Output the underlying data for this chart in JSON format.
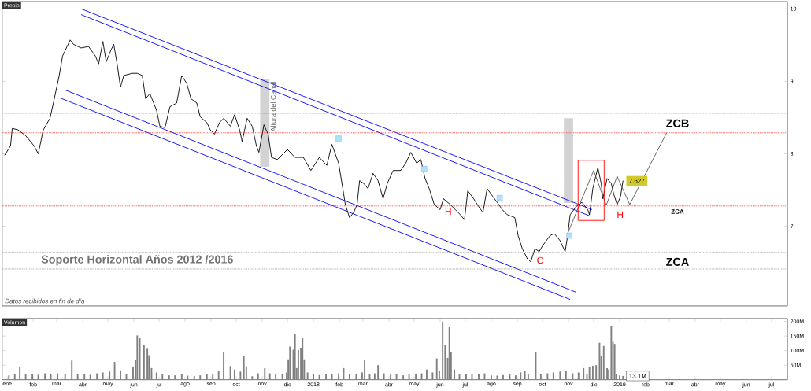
{
  "chart_data": [
    {
      "type": "line",
      "title": "Precio",
      "xlim": [
        "2016-12-26",
        "2019-07-20"
      ],
      "ylim": [
        5.9,
        10.1
      ],
      "yticks": [
        7,
        8,
        9,
        10
      ],
      "tick_labels": "y",
      "grid": false,
      "marker": "none",
      "series": [
        {
          "type": "bar",
          "color": "#d3d3d3",
          "x": [
            "2017-11-04",
            "2018-11-01"
          ],
          "base": [
            7.82,
            7.32
          ],
          "values": [
            1.21,
            1.17
          ]
        },
        {
          "type": "line",
          "color": "#000000",
          "x": [
            "2016-12-29",
            "2017-01-05",
            "2017-01-07",
            "2017-01-14",
            "2017-01-23",
            "2017-02-02",
            "2017-02-07",
            "2017-02-13",
            "2017-02-21",
            "2017-02-25",
            "2017-03-04",
            "2017-03-08",
            "2017-03-17",
            "2017-03-21",
            "2017-03-30",
            "2017-04-08",
            "2017-04-16",
            "2017-04-20",
            "2017-04-25",
            "2017-04-29",
            "2017-05-05",
            "2017-05-08",
            "2017-05-12",
            "2017-05-16",
            "2017-05-20",
            "2017-05-30",
            "2017-06-05",
            "2017-06-11",
            "2017-06-15",
            "2017-06-20",
            "2017-06-28",
            "2017-07-02",
            "2017-07-08",
            "2017-07-14",
            "2017-07-22",
            "2017-07-28",
            "2017-08-03",
            "2017-08-08",
            "2017-08-15",
            "2017-08-19",
            "2017-08-27",
            "2017-08-31",
            "2017-09-05",
            "2017-09-11",
            "2017-09-16",
            "2017-09-24",
            "2017-09-29",
            "2017-10-05",
            "2017-10-08",
            "2017-10-14",
            "2017-10-20",
            "2017-10-25",
            "2017-10-28",
            "2017-11-03",
            "2017-11-08",
            "2017-11-12",
            "2017-11-19",
            "2017-12-01",
            "2017-12-10",
            "2017-12-20",
            "2017-12-29",
            "2018-01-08",
            "2018-01-17",
            "2018-01-23",
            "2018-01-31",
            "2018-02-05",
            "2018-02-08",
            "2018-02-13",
            "2018-02-18",
            "2018-02-22",
            "2018-02-25",
            "2018-03-02",
            "2018-03-07",
            "2018-03-13",
            "2018-03-19",
            "2018-03-25",
            "2018-03-30",
            "2018-04-06",
            "2018-04-15",
            "2018-04-21",
            "2018-04-27",
            "2018-05-04",
            "2018-05-09",
            "2018-05-14",
            "2018-05-19",
            "2018-05-25",
            "2018-06-01",
            "2018-06-05",
            "2018-06-13",
            "2018-06-19",
            "2018-06-25",
            "2018-06-30",
            "2018-07-04",
            "2018-07-11",
            "2018-07-17",
            "2018-07-22",
            "2018-07-27",
            "2018-08-01",
            "2018-08-08",
            "2018-08-14",
            "2018-08-20",
            "2018-08-29",
            "2018-09-02",
            "2018-09-07",
            "2018-09-13",
            "2018-09-17",
            "2018-09-22",
            "2018-09-27",
            "2018-10-01",
            "2018-10-10",
            "2018-10-15",
            "2018-10-22",
            "2018-10-28",
            "2018-10-31",
            "2018-11-03",
            "2018-11-10",
            "2018-11-17",
            "2018-11-24",
            "2018-11-26",
            "2018-11-30",
            "2018-12-06",
            "2018-12-10",
            "2018-12-12",
            "2018-12-17",
            "2018-12-22",
            "2018-12-25",
            "2018-12-29",
            "2019-01-02",
            "2019-01-05"
          ],
          "values": [
            7.98,
            8.11,
            8.35,
            8.33,
            8.25,
            8.11,
            8.0,
            8.33,
            8.49,
            8.7,
            9.08,
            9.35,
            9.57,
            9.51,
            9.46,
            9.48,
            9.35,
            9.24,
            9.55,
            9.27,
            9.44,
            9.51,
            9.24,
            8.92,
            9.08,
            9.11,
            9.11,
            9.08,
            8.76,
            8.83,
            8.6,
            8.38,
            8.36,
            8.65,
            8.7,
            9.08,
            8.97,
            8.76,
            8.7,
            8.51,
            8.43,
            8.33,
            8.27,
            8.43,
            8.49,
            8.38,
            8.54,
            8.33,
            8.17,
            8.49,
            8.38,
            8.11,
            8.02,
            8.4,
            8.27,
            7.95,
            7.92,
            8.06,
            7.95,
            7.95,
            7.77,
            7.95,
            7.84,
            8.13,
            7.87,
            7.52,
            7.3,
            7.12,
            7.19,
            7.3,
            7.63,
            7.59,
            7.52,
            7.73,
            7.63,
            7.38,
            7.59,
            7.77,
            7.77,
            7.87,
            8.02,
            7.87,
            7.92,
            7.66,
            7.52,
            7.3,
            7.23,
            7.38,
            7.3,
            7.23,
            7.16,
            7.09,
            7.49,
            7.38,
            7.27,
            7.19,
            7.52,
            7.44,
            7.33,
            7.23,
            7.16,
            7.12,
            6.87,
            6.69,
            6.55,
            6.51,
            6.69,
            6.65,
            6.73,
            6.87,
            6.9,
            6.8,
            6.65,
            6.87,
            7.16,
            7.27,
            7.33,
            7.23,
            7.16,
            7.52,
            7.81,
            7.59,
            7.38,
            7.66,
            7.59,
            7.44,
            7.3,
            7.41,
            7.63
          ]
        },
        {
          "type": "line",
          "color": "#0000ff",
          "x": [
            "2017-03-30",
            "2018-11-29"
          ],
          "values": [
            10.0,
            7.23
          ]
        },
        {
          "type": "line",
          "color": "#0000ff",
          "x": [
            "2017-03-30",
            "2018-11-27"
          ],
          "values": [
            9.92,
            7.14
          ]
        },
        {
          "type": "line",
          "color": "#0000ff",
          "x": [
            "2017-03-11",
            "2018-11-10"
          ],
          "values": [
            8.88,
            6.09
          ]
        },
        {
          "type": "line",
          "color": "#0000ff",
          "x": [
            "2017-03-05",
            "2018-11-03"
          ],
          "values": [
            8.77,
            5.99
          ]
        },
        {
          "type": "line",
          "color": "#555555",
          "x": [
            "2018-10-31",
            "2018-12-01",
            "2018-12-16",
            "2018-12-29",
            "2019-01-13",
            "2019-02-26"
          ],
          "values": [
            6.9,
            7.77,
            7.29,
            7.69,
            7.3,
            8.29
          ]
        },
        {
          "type": "bar",
          "color": "#ff0000",
          "line_style": "solid",
          "x": [
            "2018-11-28"
          ],
          "base": [
            7.08
          ],
          "values": [
            0.83
          ]
        },
        {
          "type": "scatter",
          "color": "#aee3f5",
          "marker": "square",
          "x": [
            "2018-01-31",
            "2018-05-13",
            "2018-08-11",
            "2018-11-02"
          ],
          "values": [
            8.21,
            7.79,
            7.39,
            6.87
          ]
        }
      ],
      "ref_lines": [
        {
          "axis": "y",
          "value": 8.56,
          "color": "#ff0000",
          "line_style": "dotted"
        },
        {
          "axis": "y",
          "value": 8.29,
          "color": "#ff0000",
          "line_style": "dotted"
        },
        {
          "axis": "y",
          "value": 7.28,
          "color": "#ff0000",
          "line_style": "dotted"
        },
        {
          "axis": "y",
          "value": 6.64,
          "color": "#808080",
          "line_style": "dotted"
        },
        {
          "axis": "y",
          "value": 6.41,
          "color": "#808080",
          "line_style": "dotted"
        }
      ],
      "annotations": [
        {
          "text": "Altura del Canal",
          "x": "2017-11-14",
          "y": 8.65
        },
        "Soporte Horizontal Años  2012 /2016",
        "ZCB",
        "ZCA",
        "ZCA",
        "H",
        "H",
        "C",
        {
          "text": "7.627",
          "x": "2019-01-05",
          "y": 7.627
        },
        "Datos recibidos en fin de día"
      ]
    },
    {
      "type": "bar",
      "title": "Volumen",
      "color": "#808080",
      "xlim": [
        "2016-12-26",
        "2019-07-20"
      ],
      "ylim": [
        0,
        210
      ],
      "grid": false,
      "yticks": [
        {
          "value": 50,
          "label": "50M"
        },
        {
          "value": 100,
          "label": "100M"
        },
        {
          "value": 150,
          "label": "150M"
        },
        {
          "value": 200,
          "label": "200M"
        }
      ],
      "xticks": [
        {
          "value": "2017-01-01",
          "label": "ene"
        },
        {
          "value": "2017-02-01",
          "label": "feb"
        },
        {
          "value": "2017-03-01",
          "label": "mar"
        },
        {
          "value": "2017-04-01",
          "label": "abr"
        },
        {
          "value": "2017-05-01",
          "label": "may"
        },
        {
          "value": "2017-06-01",
          "label": "jun"
        },
        {
          "value": "2017-07-01",
          "label": "jul"
        },
        {
          "value": "2017-08-01",
          "label": "ago"
        },
        {
          "value": "2017-09-01",
          "label": "sep"
        },
        {
          "value": "2017-10-01",
          "label": "oct"
        },
        {
          "value": "2017-11-01",
          "label": "nov"
        },
        {
          "value": "2017-12-01",
          "label": "dic"
        },
        {
          "value": "2018-01-01",
          "label": "2018"
        },
        {
          "value": "2018-02-01",
          "label": "feb"
        },
        {
          "value": "2018-03-01",
          "label": "mar"
        },
        {
          "value": "2018-04-01",
          "label": "abr"
        },
        {
          "value": "2018-05-01",
          "label": "may"
        },
        {
          "value": "2018-06-01",
          "label": "jun"
        },
        {
          "value": "2018-07-01",
          "label": "jul"
        },
        {
          "value": "2018-08-01",
          "label": "ago"
        },
        {
          "value": "2018-09-01",
          "label": "sep"
        },
        {
          "value": "2018-10-01",
          "label": "oct"
        },
        {
          "value": "2018-11-01",
          "label": "nov"
        },
        {
          "value": "2018-12-01",
          "label": "dic"
        },
        {
          "value": "2019-01-01",
          "label": "2019"
        },
        {
          "value": "2019-02-01",
          "label": "feb"
        },
        {
          "value": "2019-03-01",
          "label": "mar"
        },
        {
          "value": "2019-04-01",
          "label": "abr"
        },
        {
          "value": "2019-05-01",
          "label": "may"
        },
        {
          "value": "2019-06-01",
          "label": "jun"
        },
        {
          "value": "2019-07-01",
          "label": "jul"
        }
      ],
      "x": [
        "2017-01-03",
        "2017-01-10",
        "2017-01-16",
        "2017-01-23",
        "2017-01-31",
        "2017-02-07",
        "2017-02-15",
        "2017-02-22",
        "2017-03-02",
        "2017-03-11",
        "2017-03-19",
        "2017-03-26",
        "2017-04-03",
        "2017-04-10",
        "2017-04-18",
        "2017-04-25",
        "2017-05-03",
        "2017-05-09",
        "2017-05-16",
        "2017-05-23",
        "2017-05-31",
        "2017-06-03",
        "2017-06-05",
        "2017-06-08",
        "2017-06-13",
        "2017-06-17",
        "2017-06-19",
        "2017-06-22",
        "2017-06-28",
        "2017-07-05",
        "2017-07-13",
        "2017-07-20",
        "2017-07-28",
        "2017-08-04",
        "2017-08-12",
        "2017-08-19",
        "2017-08-27",
        "2017-09-03",
        "2017-09-10",
        "2017-09-16",
        "2017-09-24",
        "2017-09-29",
        "2017-10-06",
        "2017-10-10",
        "2017-10-13",
        "2017-10-20",
        "2017-10-27",
        "2017-11-04",
        "2017-11-10",
        "2017-11-17",
        "2017-11-25",
        "2017-11-30",
        "2017-12-02",
        "2017-12-04",
        "2017-12-08",
        "2017-12-10",
        "2017-12-12",
        "2017-12-14",
        "2017-12-17",
        "2017-12-19",
        "2017-12-21",
        "2017-12-25",
        "2018-01-01",
        "2018-01-08",
        "2018-01-16",
        "2018-01-23",
        "2018-01-31",
        "2018-02-06",
        "2018-02-13",
        "2018-02-21",
        "2018-02-28",
        "2018-03-03",
        "2018-03-09",
        "2018-03-15",
        "2018-03-19",
        "2018-03-26",
        "2018-04-03",
        "2018-04-10",
        "2018-04-18",
        "2018-04-25",
        "2018-05-03",
        "2018-05-10",
        "2018-05-16",
        "2018-05-23",
        "2018-05-28",
        "2018-05-31",
        "2018-06-04",
        "2018-06-07",
        "2018-06-10",
        "2018-06-12",
        "2018-06-14",
        "2018-06-18",
        "2018-06-24",
        "2018-07-02",
        "2018-07-09",
        "2018-07-17",
        "2018-07-24",
        "2018-08-01",
        "2018-08-08",
        "2018-08-15",
        "2018-08-23",
        "2018-08-30",
        "2018-09-05",
        "2018-09-10",
        "2018-09-14",
        "2018-09-23",
        "2018-09-29",
        "2018-10-07",
        "2018-10-14",
        "2018-10-22",
        "2018-10-29",
        "2018-11-06",
        "2018-11-13",
        "2018-11-19",
        "2018-11-23",
        "2018-11-26",
        "2018-11-30",
        "2018-12-04",
        "2018-12-08",
        "2018-12-10",
        "2018-12-13",
        "2018-12-17",
        "2018-12-19",
        "2018-12-22",
        "2018-12-24",
        "2018-12-26",
        "2018-12-28",
        "2019-01-01",
        "2019-01-05"
      ],
      "values": [
        15,
        20,
        43,
        18,
        20,
        17,
        22,
        18,
        22,
        20,
        66,
        18,
        20,
        17,
        22,
        25,
        28,
        61,
        32,
        20,
        45,
        68,
        152,
        145,
        120,
        109,
        84,
        40,
        25,
        18,
        15,
        15,
        18,
        14,
        13,
        15,
        18,
        20,
        30,
        95,
        47,
        35,
        28,
        80,
        46,
        12,
        22,
        40,
        22,
        18,
        20,
        25,
        70,
        114,
        103,
        157,
        40,
        102,
        110,
        143,
        70,
        25,
        18,
        16,
        18,
        20,
        22,
        40,
        20,
        20,
        25,
        68,
        20,
        22,
        50,
        22,
        18,
        20,
        15,
        18,
        20,
        22,
        35,
        25,
        73,
        30,
        200,
        120,
        75,
        180,
        95,
        35,
        18,
        18,
        20,
        18,
        22,
        15,
        14,
        16,
        18,
        15,
        25,
        30,
        20,
        95,
        20,
        22,
        25,
        28,
        30,
        22,
        25,
        40,
        20,
        45,
        48,
        50,
        127,
        80,
        116,
        40,
        35,
        184,
        130,
        123,
        20,
        15,
        13
      ],
      "annotations": [
        {
          "text": "13.1M",
          "x": "2019-01-05",
          "y": 13
        }
      ]
    }
  ]
}
